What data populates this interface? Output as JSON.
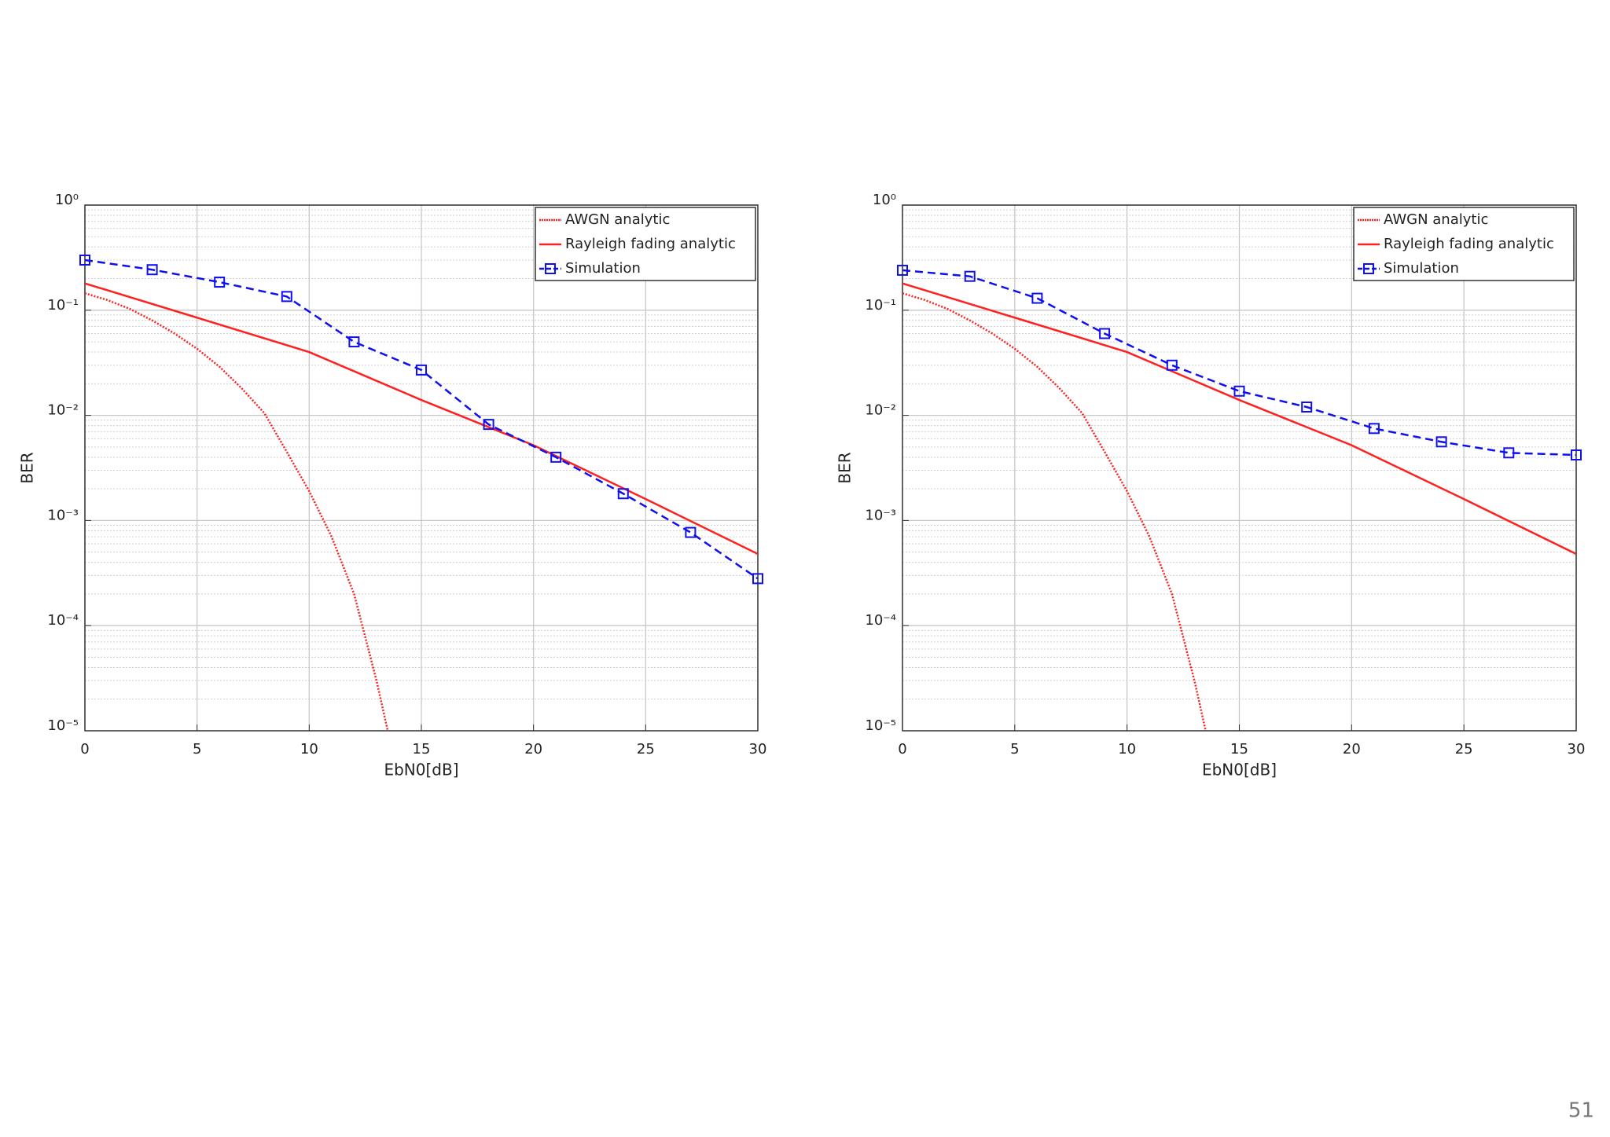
{
  "chart_data": [
    {
      "type": "line",
      "x_label": "EbN0[dB]",
      "y_label": "BER",
      "log_y": true,
      "grid": true,
      "minor_grid": true,
      "legend": "upper right",
      "xlim": [
        0,
        30
      ],
      "xticks": [
        0,
        5,
        10,
        15,
        20,
        25,
        30
      ],
      "ylim": [
        1e-05,
        1
      ],
      "yticks": [
        {
          "value": 1e-05,
          "label": "10⁻⁵"
        },
        {
          "value": 0.0001,
          "label": "10⁻⁴"
        },
        {
          "value": 0.001,
          "label": "10⁻³"
        },
        {
          "value": 0.01,
          "label": "10⁻²"
        },
        {
          "value": 0.1,
          "label": "10⁻¹"
        },
        {
          "value": 1,
          "label": "10⁰"
        }
      ],
      "series": [
        {
          "name": "AWGN analytic",
          "color": "#ff2020",
          "linestyle": "dotted",
          "x": [
            0,
            1,
            2,
            3,
            4,
            5,
            6,
            7,
            8,
            9,
            10,
            11,
            12,
            13,
            13.5
          ],
          "values": [
            0.145,
            0.125,
            0.103,
            0.08,
            0.06,
            0.043,
            0.029,
            0.018,
            0.0105,
            0.0045,
            0.0019,
            0.0007,
            0.0002,
            3e-05,
            1e-05
          ]
        },
        {
          "name": "Rayleigh fading analytic",
          "color": "#ff2020",
          "linestyle": "solid",
          "x": [
            0,
            5,
            10,
            15,
            20,
            25,
            30
          ],
          "values": [
            0.18,
            0.085,
            0.04,
            0.014,
            0.0052,
            0.0016,
            0.00048
          ]
        },
        {
          "name": "Simulation",
          "color": "#1010ee",
          "linestyle": "dashed",
          "marker": "square",
          "x": [
            0,
            3,
            6,
            9,
            12,
            15,
            18,
            21,
            24,
            27,
            30
          ],
          "values": [
            0.3,
            0.243,
            0.185,
            0.135,
            0.05,
            0.027,
            0.0082,
            0.004,
            0.0018,
            0.00077,
            0.00028
          ]
        }
      ]
    },
    {
      "type": "line",
      "x_label": "EbN0[dB]",
      "y_label": "BER",
      "log_y": true,
      "grid": true,
      "minor_grid": true,
      "legend": "upper right",
      "xlim": [
        0,
        30
      ],
      "xticks": [
        0,
        5,
        10,
        15,
        20,
        25,
        30
      ],
      "ylim": [
        1e-05,
        1
      ],
      "yticks": [
        {
          "value": 1e-05,
          "label": "10⁻⁵"
        },
        {
          "value": 0.0001,
          "label": "10⁻⁴"
        },
        {
          "value": 0.001,
          "label": "10⁻³"
        },
        {
          "value": 0.01,
          "label": "10⁻²"
        },
        {
          "value": 0.1,
          "label": "10⁻¹"
        },
        {
          "value": 1,
          "label": "10⁰"
        }
      ],
      "series": [
        {
          "name": "AWGN analytic",
          "color": "#ff2020",
          "linestyle": "dotted",
          "x": [
            0,
            1,
            2,
            3,
            4,
            5,
            6,
            7,
            8,
            9,
            10,
            11,
            12,
            13,
            13.5
          ],
          "values": [
            0.145,
            0.125,
            0.103,
            0.08,
            0.06,
            0.043,
            0.029,
            0.018,
            0.0105,
            0.0045,
            0.0019,
            0.0007,
            0.0002,
            3e-05,
            1e-05
          ]
        },
        {
          "name": "Rayleigh fading analytic",
          "color": "#ff2020",
          "linestyle": "solid",
          "x": [
            0,
            5,
            10,
            15,
            20,
            25,
            30
          ],
          "values": [
            0.18,
            0.085,
            0.04,
            0.014,
            0.0052,
            0.0016,
            0.00048
          ]
        },
        {
          "name": "Simulation",
          "color": "#1010ee",
          "linestyle": "dashed",
          "marker": "square",
          "x": [
            0,
            3,
            6,
            9,
            12,
            15,
            18,
            21,
            24,
            27,
            30
          ],
          "values": [
            0.24,
            0.21,
            0.13,
            0.06,
            0.03,
            0.017,
            0.012,
            0.0075,
            0.0056,
            0.0044,
            0.0042
          ]
        }
      ]
    }
  ],
  "page_number": "51"
}
